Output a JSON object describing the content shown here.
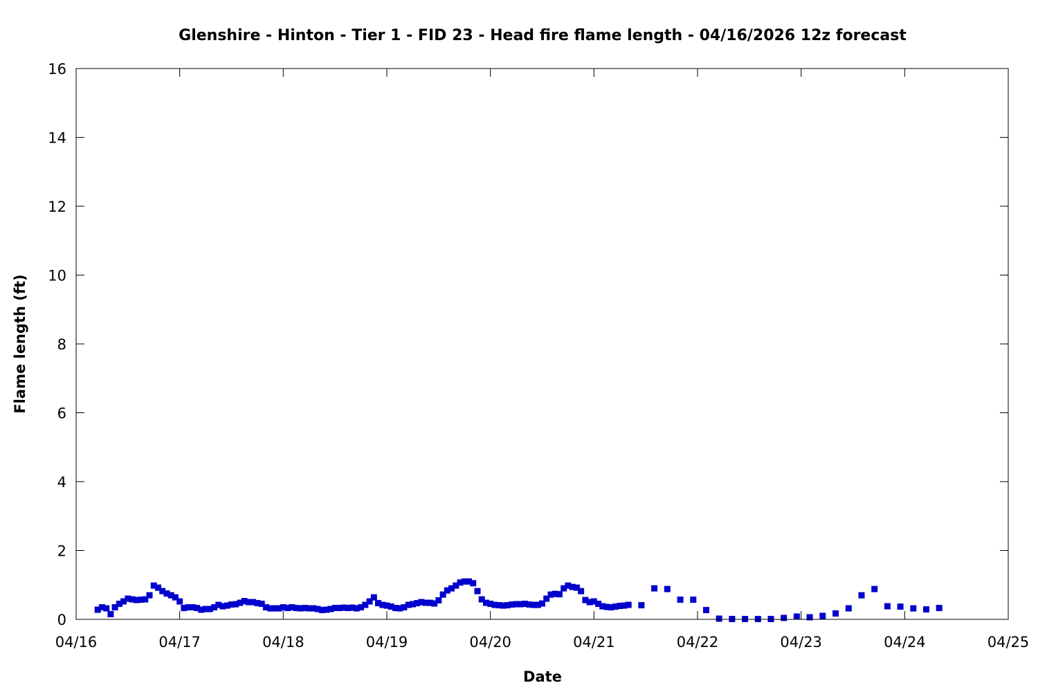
{
  "chart_data": {
    "type": "scatter",
    "title": "Glenshire - Hinton - Tier 1 - FID 23 - Head fire flame length - 04/16/2026 12z forecast",
    "xlabel": "Date",
    "ylabel": "Flame length (ft)",
    "xlim": [
      "2026-04-16T00:00",
      "2026-04-25T00:00"
    ],
    "ylim": [
      0,
      16
    ],
    "x_tick_labels": [
      "04/16",
      "04/17",
      "04/18",
      "04/19",
      "04/20",
      "04/21",
      "04/22",
      "04/23",
      "04/24",
      "04/25"
    ],
    "y_tick_labels": [
      "0",
      "2",
      "4",
      "6",
      "8",
      "10",
      "12",
      "14",
      "16"
    ],
    "y_ticks": [
      0,
      2,
      4,
      6,
      8,
      10,
      12,
      14,
      16
    ],
    "grid": false,
    "marker_color": "#0000cd",
    "series": [
      {
        "points": [
          [
            "2026-04-16T05:00",
            0.28
          ],
          [
            "2026-04-16T06:00",
            0.35
          ],
          [
            "2026-04-16T07:00",
            0.32
          ],
          [
            "2026-04-16T08:00",
            0.15
          ],
          [
            "2026-04-16T09:00",
            0.35
          ],
          [
            "2026-04-16T10:00",
            0.45
          ],
          [
            "2026-04-16T11:00",
            0.52
          ],
          [
            "2026-04-16T12:00",
            0.6
          ],
          [
            "2026-04-16T13:00",
            0.58
          ],
          [
            "2026-04-16T14:00",
            0.56
          ],
          [
            "2026-04-16T15:00",
            0.57
          ],
          [
            "2026-04-16T16:00",
            0.58
          ],
          [
            "2026-04-16T17:00",
            0.7
          ],
          [
            "2026-04-16T18:00",
            0.98
          ],
          [
            "2026-04-16T19:00",
            0.92
          ],
          [
            "2026-04-16T20:00",
            0.82
          ],
          [
            "2026-04-16T21:00",
            0.75
          ],
          [
            "2026-04-16T22:00",
            0.7
          ],
          [
            "2026-04-16T23:00",
            0.64
          ],
          [
            "2026-04-17T00:00",
            0.52
          ],
          [
            "2026-04-17T01:00",
            0.33
          ],
          [
            "2026-04-17T02:00",
            0.35
          ],
          [
            "2026-04-17T03:00",
            0.35
          ],
          [
            "2026-04-17T04:00",
            0.33
          ],
          [
            "2026-04-17T05:00",
            0.28
          ],
          [
            "2026-04-17T06:00",
            0.3
          ],
          [
            "2026-04-17T07:00",
            0.3
          ],
          [
            "2026-04-17T08:00",
            0.35
          ],
          [
            "2026-04-17T09:00",
            0.42
          ],
          [
            "2026-04-17T10:00",
            0.38
          ],
          [
            "2026-04-17T11:00",
            0.4
          ],
          [
            "2026-04-17T12:00",
            0.43
          ],
          [
            "2026-04-17T13:00",
            0.44
          ],
          [
            "2026-04-17T14:00",
            0.48
          ],
          [
            "2026-04-17T15:00",
            0.53
          ],
          [
            "2026-04-17T16:00",
            0.5
          ],
          [
            "2026-04-17T17:00",
            0.5
          ],
          [
            "2026-04-17T18:00",
            0.47
          ],
          [
            "2026-04-17T19:00",
            0.45
          ],
          [
            "2026-04-17T20:00",
            0.35
          ],
          [
            "2026-04-17T21:00",
            0.32
          ],
          [
            "2026-04-17T22:00",
            0.32
          ],
          [
            "2026-04-17T23:00",
            0.32
          ],
          [
            "2026-04-18T00:00",
            0.35
          ],
          [
            "2026-04-18T01:00",
            0.33
          ],
          [
            "2026-04-18T02:00",
            0.35
          ],
          [
            "2026-04-18T03:00",
            0.33
          ],
          [
            "2026-04-18T04:00",
            0.32
          ],
          [
            "2026-04-18T05:00",
            0.33
          ],
          [
            "2026-04-18T06:00",
            0.32
          ],
          [
            "2026-04-18T07:00",
            0.32
          ],
          [
            "2026-04-18T08:00",
            0.3
          ],
          [
            "2026-04-18T09:00",
            0.27
          ],
          [
            "2026-04-18T10:00",
            0.28
          ],
          [
            "2026-04-18T11:00",
            0.3
          ],
          [
            "2026-04-18T12:00",
            0.33
          ],
          [
            "2026-04-18T13:00",
            0.33
          ],
          [
            "2026-04-18T14:00",
            0.34
          ],
          [
            "2026-04-18T15:00",
            0.33
          ],
          [
            "2026-04-18T16:00",
            0.34
          ],
          [
            "2026-04-18T17:00",
            0.32
          ],
          [
            "2026-04-18T18:00",
            0.35
          ],
          [
            "2026-04-18T19:00",
            0.42
          ],
          [
            "2026-04-18T20:00",
            0.52
          ],
          [
            "2026-04-18T21:00",
            0.64
          ],
          [
            "2026-04-18T22:00",
            0.47
          ],
          [
            "2026-04-18T23:00",
            0.42
          ],
          [
            "2026-04-19T00:00",
            0.4
          ],
          [
            "2026-04-19T01:00",
            0.37
          ],
          [
            "2026-04-19T02:00",
            0.33
          ],
          [
            "2026-04-19T03:00",
            0.32
          ],
          [
            "2026-04-19T04:00",
            0.35
          ],
          [
            "2026-04-19T05:00",
            0.42
          ],
          [
            "2026-04-19T06:00",
            0.44
          ],
          [
            "2026-04-19T07:00",
            0.47
          ],
          [
            "2026-04-19T08:00",
            0.5
          ],
          [
            "2026-04-19T09:00",
            0.48
          ],
          [
            "2026-04-19T10:00",
            0.48
          ],
          [
            "2026-04-19T11:00",
            0.46
          ],
          [
            "2026-04-19T12:00",
            0.55
          ],
          [
            "2026-04-19T13:00",
            0.72
          ],
          [
            "2026-04-19T14:00",
            0.84
          ],
          [
            "2026-04-19T15:00",
            0.9
          ],
          [
            "2026-04-19T16:00",
            0.98
          ],
          [
            "2026-04-19T17:00",
            1.07
          ],
          [
            "2026-04-19T18:00",
            1.1
          ],
          [
            "2026-04-19T19:00",
            1.1
          ],
          [
            "2026-04-19T20:00",
            1.05
          ],
          [
            "2026-04-19T21:00",
            0.82
          ],
          [
            "2026-04-19T22:00",
            0.58
          ],
          [
            "2026-04-19T23:00",
            0.48
          ],
          [
            "2026-04-20T00:00",
            0.45
          ],
          [
            "2026-04-20T01:00",
            0.42
          ],
          [
            "2026-04-20T02:00",
            0.41
          ],
          [
            "2026-04-20T03:00",
            0.4
          ],
          [
            "2026-04-20T04:00",
            0.41
          ],
          [
            "2026-04-20T05:00",
            0.43
          ],
          [
            "2026-04-20T06:00",
            0.44
          ],
          [
            "2026-04-20T07:00",
            0.44
          ],
          [
            "2026-04-20T08:00",
            0.45
          ],
          [
            "2026-04-20T09:00",
            0.43
          ],
          [
            "2026-04-20T10:00",
            0.42
          ],
          [
            "2026-04-20T11:00",
            0.42
          ],
          [
            "2026-04-20T12:00",
            0.46
          ],
          [
            "2026-04-20T13:00",
            0.6
          ],
          [
            "2026-04-20T14:00",
            0.72
          ],
          [
            "2026-04-20T15:00",
            0.74
          ],
          [
            "2026-04-20T16:00",
            0.73
          ],
          [
            "2026-04-20T17:00",
            0.9
          ],
          [
            "2026-04-20T18:00",
            0.98
          ],
          [
            "2026-04-20T19:00",
            0.94
          ],
          [
            "2026-04-20T20:00",
            0.92
          ],
          [
            "2026-04-20T21:00",
            0.82
          ],
          [
            "2026-04-20T22:00",
            0.56
          ],
          [
            "2026-04-20T23:00",
            0.5
          ],
          [
            "2026-04-21T00:00",
            0.52
          ],
          [
            "2026-04-21T01:00",
            0.45
          ],
          [
            "2026-04-21T02:00",
            0.38
          ],
          [
            "2026-04-21T03:00",
            0.36
          ],
          [
            "2026-04-21T04:00",
            0.35
          ],
          [
            "2026-04-21T05:00",
            0.37
          ],
          [
            "2026-04-21T06:00",
            0.39
          ],
          [
            "2026-04-21T07:00",
            0.4
          ],
          [
            "2026-04-21T08:00",
            0.42
          ],
          [
            "2026-04-21T11:00",
            0.41
          ],
          [
            "2026-04-21T14:00",
            0.9
          ],
          [
            "2026-04-21T17:00",
            0.88
          ],
          [
            "2026-04-21T20:00",
            0.57
          ],
          [
            "2026-04-21T23:00",
            0.57
          ],
          [
            "2026-04-22T02:00",
            0.27
          ],
          [
            "2026-04-22T05:00",
            0.02
          ],
          [
            "2026-04-22T08:00",
            0.01
          ],
          [
            "2026-04-22T11:00",
            0.01
          ],
          [
            "2026-04-22T14:00",
            0.01
          ],
          [
            "2026-04-22T17:00",
            0.01
          ],
          [
            "2026-04-22T20:00",
            0.04
          ],
          [
            "2026-04-22T23:00",
            0.08
          ],
          [
            "2026-04-23T02:00",
            0.06
          ],
          [
            "2026-04-23T05:00",
            0.1
          ],
          [
            "2026-04-23T08:00",
            0.17
          ],
          [
            "2026-04-23T11:00",
            0.32
          ],
          [
            "2026-04-23T14:00",
            0.7
          ],
          [
            "2026-04-23T17:00",
            0.88
          ],
          [
            "2026-04-23T20:00",
            0.38
          ],
          [
            "2026-04-23T23:00",
            0.37
          ],
          [
            "2026-04-24T02:00",
            0.32
          ],
          [
            "2026-04-24T05:00",
            0.29
          ],
          [
            "2026-04-24T08:00",
            0.33
          ]
        ]
      }
    ]
  }
}
